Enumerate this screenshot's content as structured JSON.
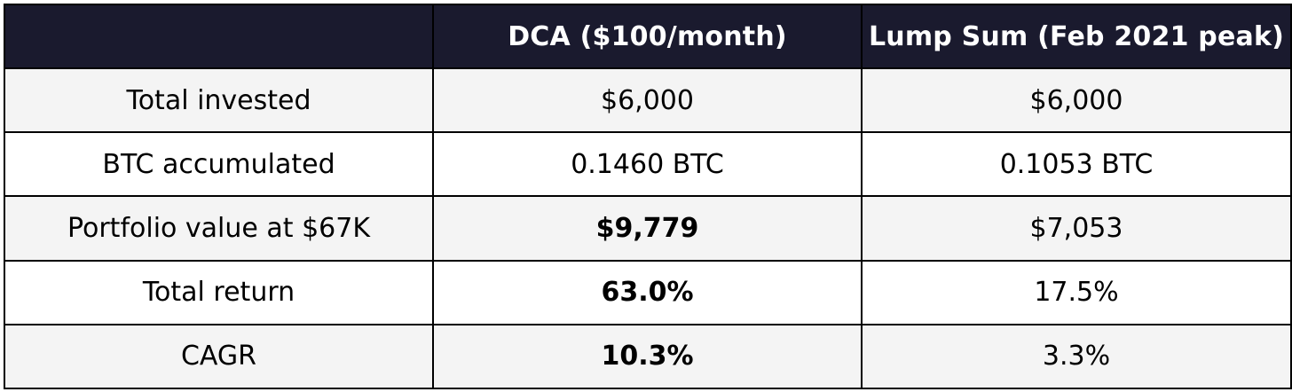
{
  "table": {
    "header": {
      "col0": "",
      "col1": "DCA ($100/month)",
      "col2": "Lump Sum (Feb 2021 peak)"
    },
    "rows": [
      {
        "label": "Total invested",
        "dca": "$6,000",
        "lump": "$6,000",
        "dca_bold": false
      },
      {
        "label": "BTC accumulated",
        "dca": "0.1460 BTC",
        "lump": "0.1053 BTC",
        "dca_bold": false
      },
      {
        "label": "Portfolio value at $67K",
        "dca": "$9,779",
        "lump": "$7,053",
        "dca_bold": true
      },
      {
        "label": "Total return",
        "dca": "63.0%",
        "lump": "17.5%",
        "dca_bold": true
      },
      {
        "label": "CAGR",
        "dca": "10.3%",
        "lump": "3.3%",
        "dca_bold": true
      }
    ]
  },
  "colors": {
    "header_bg": "#1a1a2e",
    "header_text": "#ffffff",
    "row_alt_bg": "#f4f4f4",
    "row_bg": "#ffffff",
    "border": "#000000"
  }
}
